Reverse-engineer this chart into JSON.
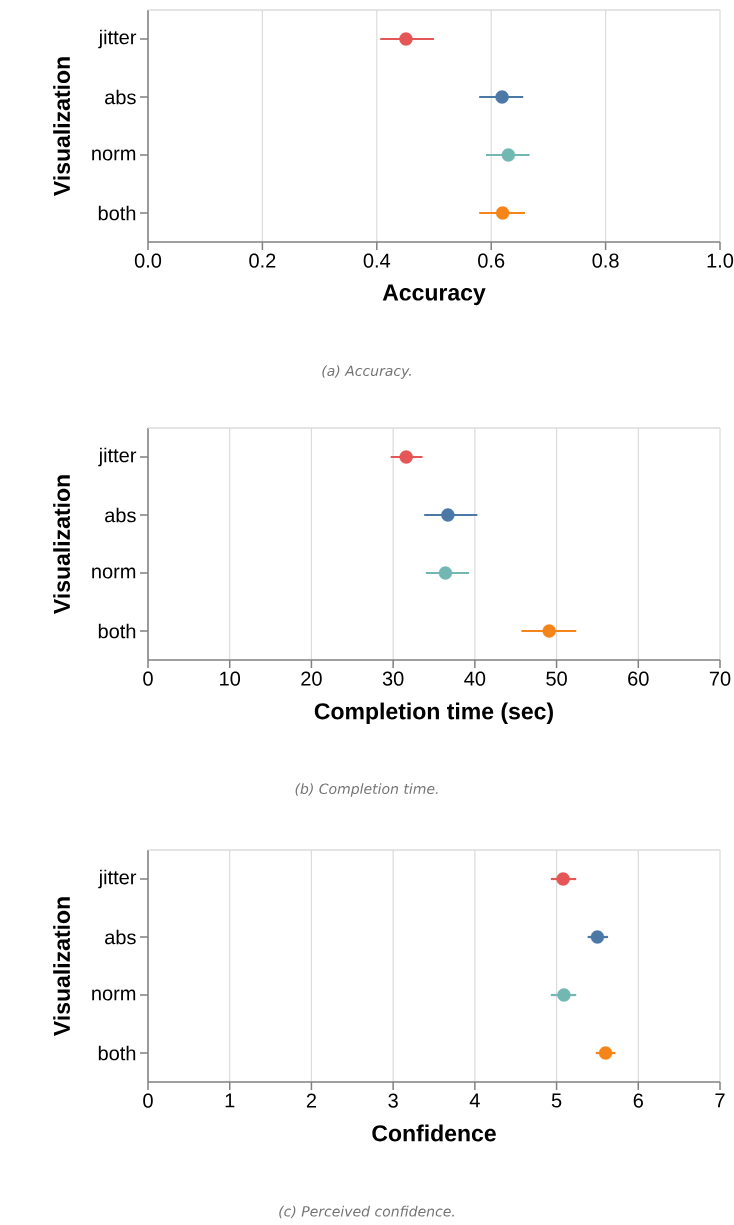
{
  "chart_data": [
    {
      "type": "scatter",
      "orientation": "horizontal",
      "categories": [
        "jitter",
        "abs",
        "norm",
        "both"
      ],
      "values": [
        0.451,
        0.619,
        0.63,
        0.62
      ],
      "errors": [
        [
          0.406,
          0.5
        ],
        [
          0.579,
          0.656
        ],
        [
          0.591,
          0.667
        ],
        [
          0.579,
          0.659
        ]
      ],
      "colors": [
        "#e45756",
        "#4c78a8",
        "#72b7b2",
        "#f58518"
      ],
      "xlim": [
        0,
        1
      ],
      "xticks": [
        {
          "value": 0,
          "label": "0.0"
        },
        {
          "value": 0.2,
          "label": "0.2"
        },
        {
          "value": 0.4,
          "label": "0.4"
        },
        {
          "value": 0.6,
          "label": "0.6"
        },
        {
          "value": 0.8,
          "label": "0.8"
        },
        {
          "value": 1,
          "label": "1.0"
        }
      ],
      "xlabel": "Accuracy",
      "ylabel": "Visualization",
      "grid": "x",
      "marker": "circle",
      "annotations": [
        "(a) Accuracy."
      ]
    },
    {
      "type": "scatter",
      "orientation": "horizontal",
      "categories": [
        "jitter",
        "abs",
        "norm",
        "both"
      ],
      "values": [
        31.6,
        36.7,
        36.4,
        49.1
      ],
      "errors": [
        [
          29.7,
          33.6
        ],
        [
          33.8,
          40.3
        ],
        [
          34.0,
          39.3
        ],
        [
          45.7,
          52.4
        ]
      ],
      "colors": [
        "#e45756",
        "#4c78a8",
        "#72b7b2",
        "#f58518"
      ],
      "xlim": [
        0,
        70
      ],
      "xticks": [
        0,
        10,
        20,
        30,
        40,
        50,
        60,
        70
      ],
      "xlabel": "Completion time (sec)",
      "ylabel": "Visualization",
      "grid": "x",
      "marker": "circle",
      "annotations": [
        "(b) Completion time."
      ]
    },
    {
      "type": "scatter",
      "orientation": "horizontal",
      "categories": [
        "jitter",
        "abs",
        "norm",
        "both"
      ],
      "values": [
        5.08,
        5.5,
        5.09,
        5.6
      ],
      "errors": [
        [
          4.93,
          5.24
        ],
        [
          5.38,
          5.63
        ],
        [
          4.93,
          5.24
        ],
        [
          5.48,
          5.72
        ]
      ],
      "colors": [
        "#e45756",
        "#4c78a8",
        "#72b7b2",
        "#f58518"
      ],
      "xlim": [
        0,
        7
      ],
      "xticks": [
        0,
        1,
        2,
        3,
        4,
        5,
        6,
        7
      ],
      "xlabel": "Confidence",
      "ylabel": "Visualization",
      "grid": "x",
      "marker": "circle",
      "annotations": [
        "(c) Perceived confidence."
      ]
    }
  ]
}
